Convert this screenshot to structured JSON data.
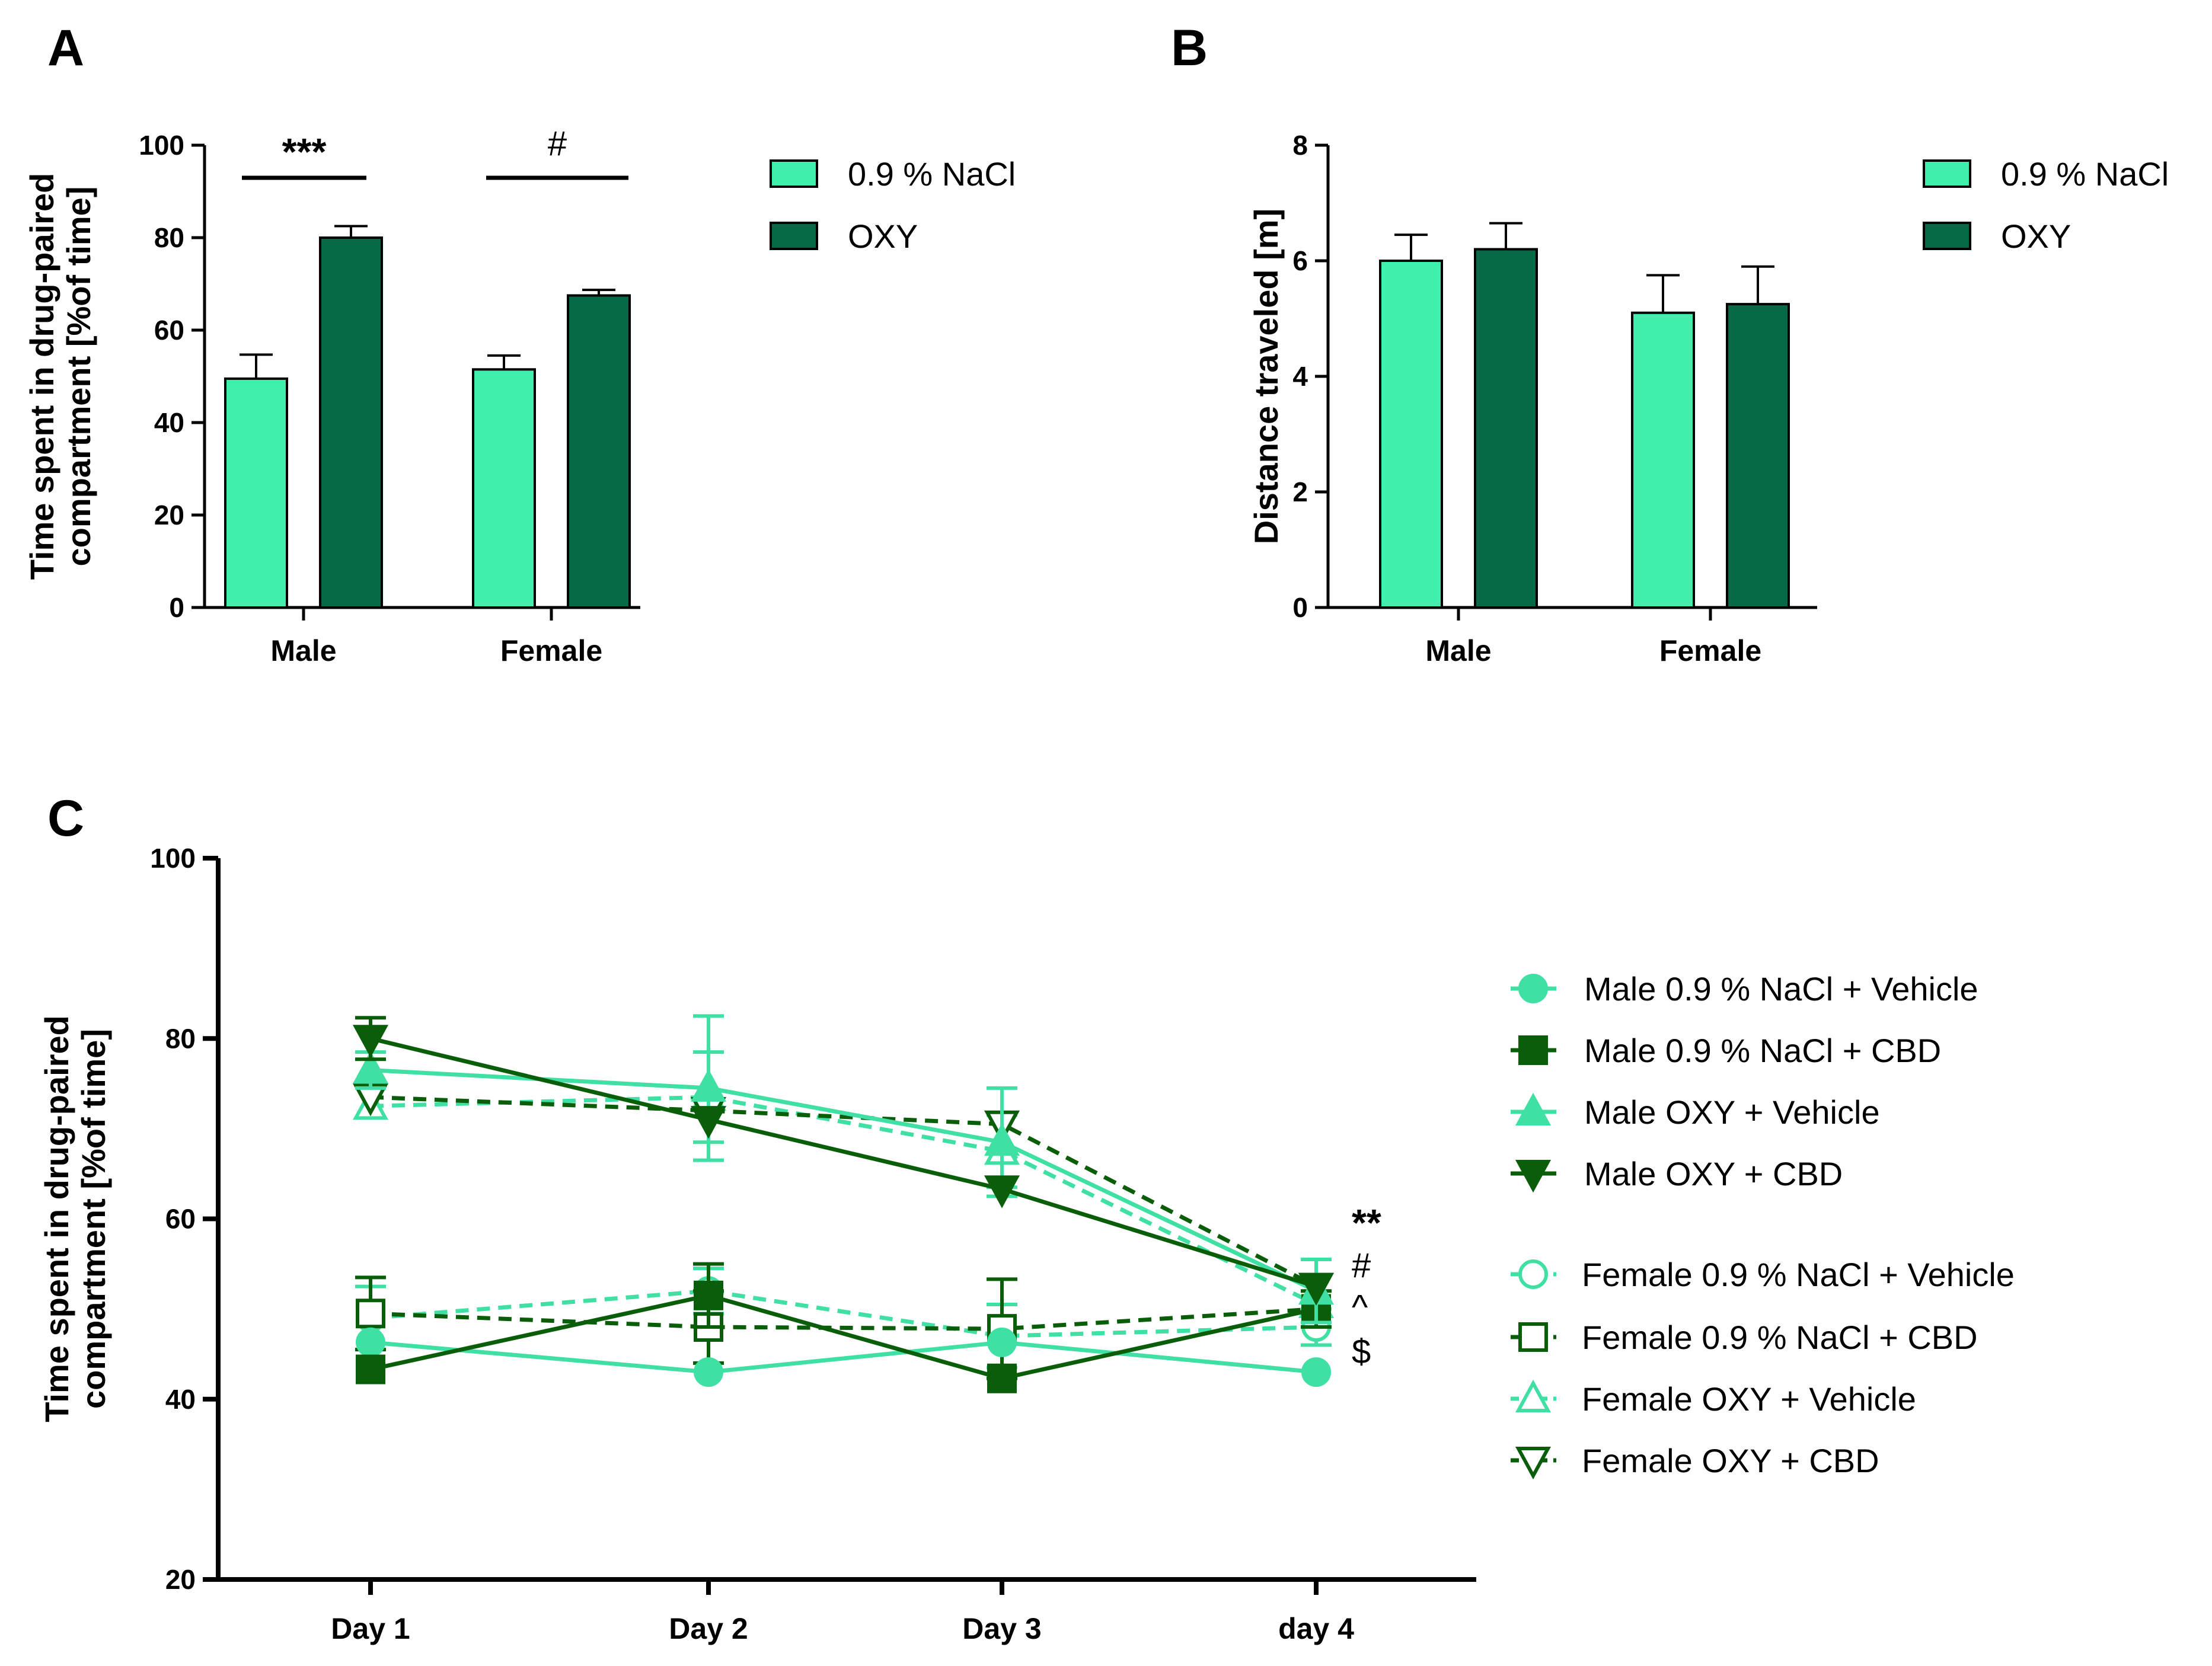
{
  "colors": {
    "nacl": "#40EFAC",
    "oxy": "#076A46",
    "male_nacl_vehicle": "#40E0A5",
    "male_nacl_cbd": "#0A5E0A",
    "male_oxy_vehicle": "#40E0A5",
    "male_oxy_cbd": "#0A5E0A",
    "female_nacl_vehicle": "#40E0A5",
    "female_nacl_cbd": "#0A5E0A",
    "female_oxy_vehicle": "#40E0A5",
    "female_oxy_cbd": "#0A5E0A"
  },
  "chart_data": [
    {
      "panel": "A",
      "type": "bar",
      "title": "",
      "xlabel": "",
      "ylabel": "Time spent in drug-paired compartment [%of time]",
      "ylabel_lines": [
        "Time spent in drug-paired",
        "compartment [%of time]"
      ],
      "ylim": [
        0,
        100
      ],
      "yticks": [
        0,
        20,
        40,
        60,
        80,
        100
      ],
      "categories": [
        "Male",
        "Female"
      ],
      "series": [
        {
          "name": "0.9 % NaCl",
          "values": [
            49.5,
            51.5
          ],
          "errors": [
            5.2,
            3.0
          ]
        },
        {
          "name": "OXY",
          "values": [
            80.0,
            67.5
          ],
          "errors": [
            2.5,
            1.2
          ]
        }
      ],
      "legend": {
        "placement": "top-right",
        "entries": [
          "0.9 % NaCl",
          "OXY"
        ]
      },
      "annotations": [
        {
          "category": "Male",
          "text": "***"
        },
        {
          "category": "Female",
          "text": "#"
        }
      ]
    },
    {
      "panel": "B",
      "type": "bar",
      "title": "",
      "xlabel": "",
      "ylabel": "Distance traveled [m]",
      "ylim": [
        0,
        8
      ],
      "yticks": [
        0,
        2,
        4,
        6,
        8
      ],
      "categories": [
        "Male",
        "Female"
      ],
      "series": [
        {
          "name": "0.9 % NaCl",
          "values": [
            6.0,
            5.1
          ],
          "errors": [
            0.45,
            0.65
          ]
        },
        {
          "name": "OXY",
          "values": [
            6.2,
            5.25
          ],
          "errors": [
            0.45,
            0.65
          ]
        }
      ],
      "legend": {
        "placement": "top-right",
        "entries": [
          "0.9 % NaCl",
          "OXY"
        ]
      }
    },
    {
      "panel": "C",
      "type": "line",
      "title": "",
      "xlabel": "",
      "ylabel": "Time spent in drug-paired compartment [%of time]",
      "ylabel_lines": [
        "Time spent in drug-paired",
        "compartment [%of time]"
      ],
      "ylim": [
        20,
        100
      ],
      "yticks": [
        20,
        40,
        60,
        80,
        100
      ],
      "x": [
        "Day 1",
        "Day 2",
        "Day 3",
        "day 4"
      ],
      "legend": {
        "placement": "right"
      },
      "series": [
        {
          "name": "Male 0.9 % NaCl + Vehicle",
          "marker": "circle",
          "filled": true,
          "dashed": false,
          "color": "male_nacl_vehicle",
          "values": [
            46.3,
            43.0,
            46.3,
            43.0
          ],
          "errors": [
            0,
            0,
            0,
            0
          ]
        },
        {
          "name": "Male 0.9 % NaCl + CBD",
          "marker": "square",
          "filled": true,
          "dashed": false,
          "color": "male_nacl_cbd",
          "values": [
            43.3,
            51.5,
            42.3,
            50.0
          ],
          "errors": [
            0,
            3.5,
            0,
            0
          ]
        },
        {
          "name": "Male OXY + Vehicle",
          "marker": "triangle-up",
          "filled": true,
          "dashed": false,
          "color": "male_oxy_vehicle",
          "values": [
            76.5,
            74.5,
            68.5,
            52.0
          ],
          "errors": [
            2.0,
            8.0,
            6.0,
            3.5
          ]
        },
        {
          "name": "Male OXY + CBD",
          "marker": "triangle-down",
          "filled": true,
          "dashed": false,
          "color": "male_oxy_cbd",
          "values": [
            80.0,
            71.0,
            63.3,
            52.5
          ],
          "errors": [
            2.3,
            0,
            0,
            0
          ]
        },
        {
          "name": "Female 0.9 % NaCl + Vehicle",
          "marker": "circle",
          "filled": false,
          "dashed": true,
          "color": "female_nacl_vehicle",
          "values": [
            49.0,
            52.0,
            47.0,
            48.0
          ],
          "errors": [
            3.5,
            2.5,
            3.5,
            2.0
          ]
        },
        {
          "name": "Female 0.9 % NaCl + CBD",
          "marker": "square",
          "filled": false,
          "dashed": true,
          "color": "female_nacl_cbd",
          "values": [
            49.5,
            48.0,
            47.8,
            50.0
          ],
          "errors": [
            4.0,
            4.0,
            5.5,
            2.0
          ]
        },
        {
          "name": "Female OXY + Vehicle",
          "marker": "triangle-up",
          "filled": false,
          "dashed": true,
          "color": "female_oxy_vehicle",
          "values": [
            72.5,
            73.5,
            67.5,
            50.5
          ],
          "errors": [
            0,
            5.0,
            4.0,
            0
          ]
        },
        {
          "name": "Female OXY + CBD",
          "marker": "triangle-down",
          "filled": false,
          "dashed": true,
          "color": "female_oxy_cbd",
          "values": [
            73.5,
            72.0,
            70.5,
            52.5
          ],
          "errors": [
            0,
            0,
            0,
            0
          ]
        }
      ],
      "annotations": [
        "**",
        "#",
        "^",
        "$"
      ]
    }
  ]
}
